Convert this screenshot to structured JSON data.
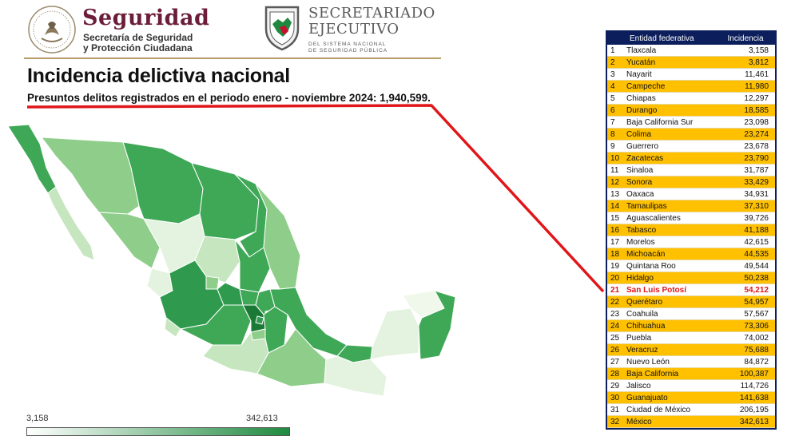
{
  "header": {
    "seguridad_logo": {
      "title": "Seguridad",
      "line1": "Secretaría de Seguridad",
      "line2": "y Protección Ciudadana"
    },
    "secretariado_logo": {
      "title1": "SECRETARIADO",
      "title2": "EJECUTIVO",
      "sub1": "DEL SISTEMA NACIONAL",
      "sub2": "DE SEGURIDAD PÚBLICA"
    }
  },
  "main": {
    "title": "Incidencia delictiva nacional",
    "subtitle": "Presuntos delitos registrados en el periodo enero - noviembre 2024: 1,940,599."
  },
  "colors": {
    "header_line": "#b89c67",
    "table_header": "#0c1f5c",
    "row_alt": "#ffc000",
    "highlight": "#e0161a",
    "map_light": "#f0f8ec",
    "map_dark": "#1f8a3f",
    "connector": "#e0161a"
  },
  "legend": {
    "min_label": "3,158",
    "max_label": "342,613"
  },
  "chart_data": {
    "type": "table",
    "columns": [
      "",
      "Entidad federativa",
      "Incidencia"
    ],
    "highlight_rank": 21,
    "rows": [
      {
        "rank": "1",
        "state": "Tlaxcala",
        "value": "3,158"
      },
      {
        "rank": "2",
        "state": "Yucatán",
        "value": "3,812"
      },
      {
        "rank": "3",
        "state": "Nayarit",
        "value": "11,461"
      },
      {
        "rank": "4",
        "state": "Campeche",
        "value": "11,980"
      },
      {
        "rank": "5",
        "state": "Chiapas",
        "value": "12,297"
      },
      {
        "rank": "6",
        "state": "Durango",
        "value": "18,585"
      },
      {
        "rank": "7",
        "state": "Baja California Sur",
        "value": "23,098"
      },
      {
        "rank": "8",
        "state": "Colima",
        "value": "23,274"
      },
      {
        "rank": "9",
        "state": "Guerrero",
        "value": "23,678"
      },
      {
        "rank": "10",
        "state": "Zacatecas",
        "value": "23,790"
      },
      {
        "rank": "11",
        "state": "Sinaloa",
        "value": "31,787"
      },
      {
        "rank": "12",
        "state": "Sonora",
        "value": "33,429"
      },
      {
        "rank": "13",
        "state": "Oaxaca",
        "value": "34,931"
      },
      {
        "rank": "14",
        "state": "Tamaulipas",
        "value": "37,310"
      },
      {
        "rank": "15",
        "state": "Aguascalientes",
        "value": "39,726"
      },
      {
        "rank": "16",
        "state": "Tabasco",
        "value": "41,188"
      },
      {
        "rank": "17",
        "state": "Morelos",
        "value": "42,615"
      },
      {
        "rank": "18",
        "state": "Michoacán",
        "value": "44,535"
      },
      {
        "rank": "19",
        "state": "Quintana Roo",
        "value": "49,544"
      },
      {
        "rank": "20",
        "state": "Hidalgo",
        "value": "50,238"
      },
      {
        "rank": "21",
        "state": "San Luis Potosí",
        "value": "54,212"
      },
      {
        "rank": "22",
        "state": "Querétaro",
        "value": "54,957"
      },
      {
        "rank": "23",
        "state": "Coahuila",
        "value": "57,567"
      },
      {
        "rank": "24",
        "state": "Chihuahua",
        "value": "73,306"
      },
      {
        "rank": "25",
        "state": "Puebla",
        "value": "74,002"
      },
      {
        "rank": "26",
        "state": "Veracruz",
        "value": "75,688"
      },
      {
        "rank": "27",
        "state": "Nuevo León",
        "value": "84,872"
      },
      {
        "rank": "28",
        "state": "Baja California",
        "value": "100,387"
      },
      {
        "rank": "29",
        "state": "Jalisco",
        "value": "114,726"
      },
      {
        "rank": "30",
        "state": "Guanajuato",
        "value": "141,638"
      },
      {
        "rank": "31",
        "state": "Ciudad de México",
        "value": "206,195"
      },
      {
        "rank": "32",
        "state": "México",
        "value": "342,613"
      }
    ]
  }
}
